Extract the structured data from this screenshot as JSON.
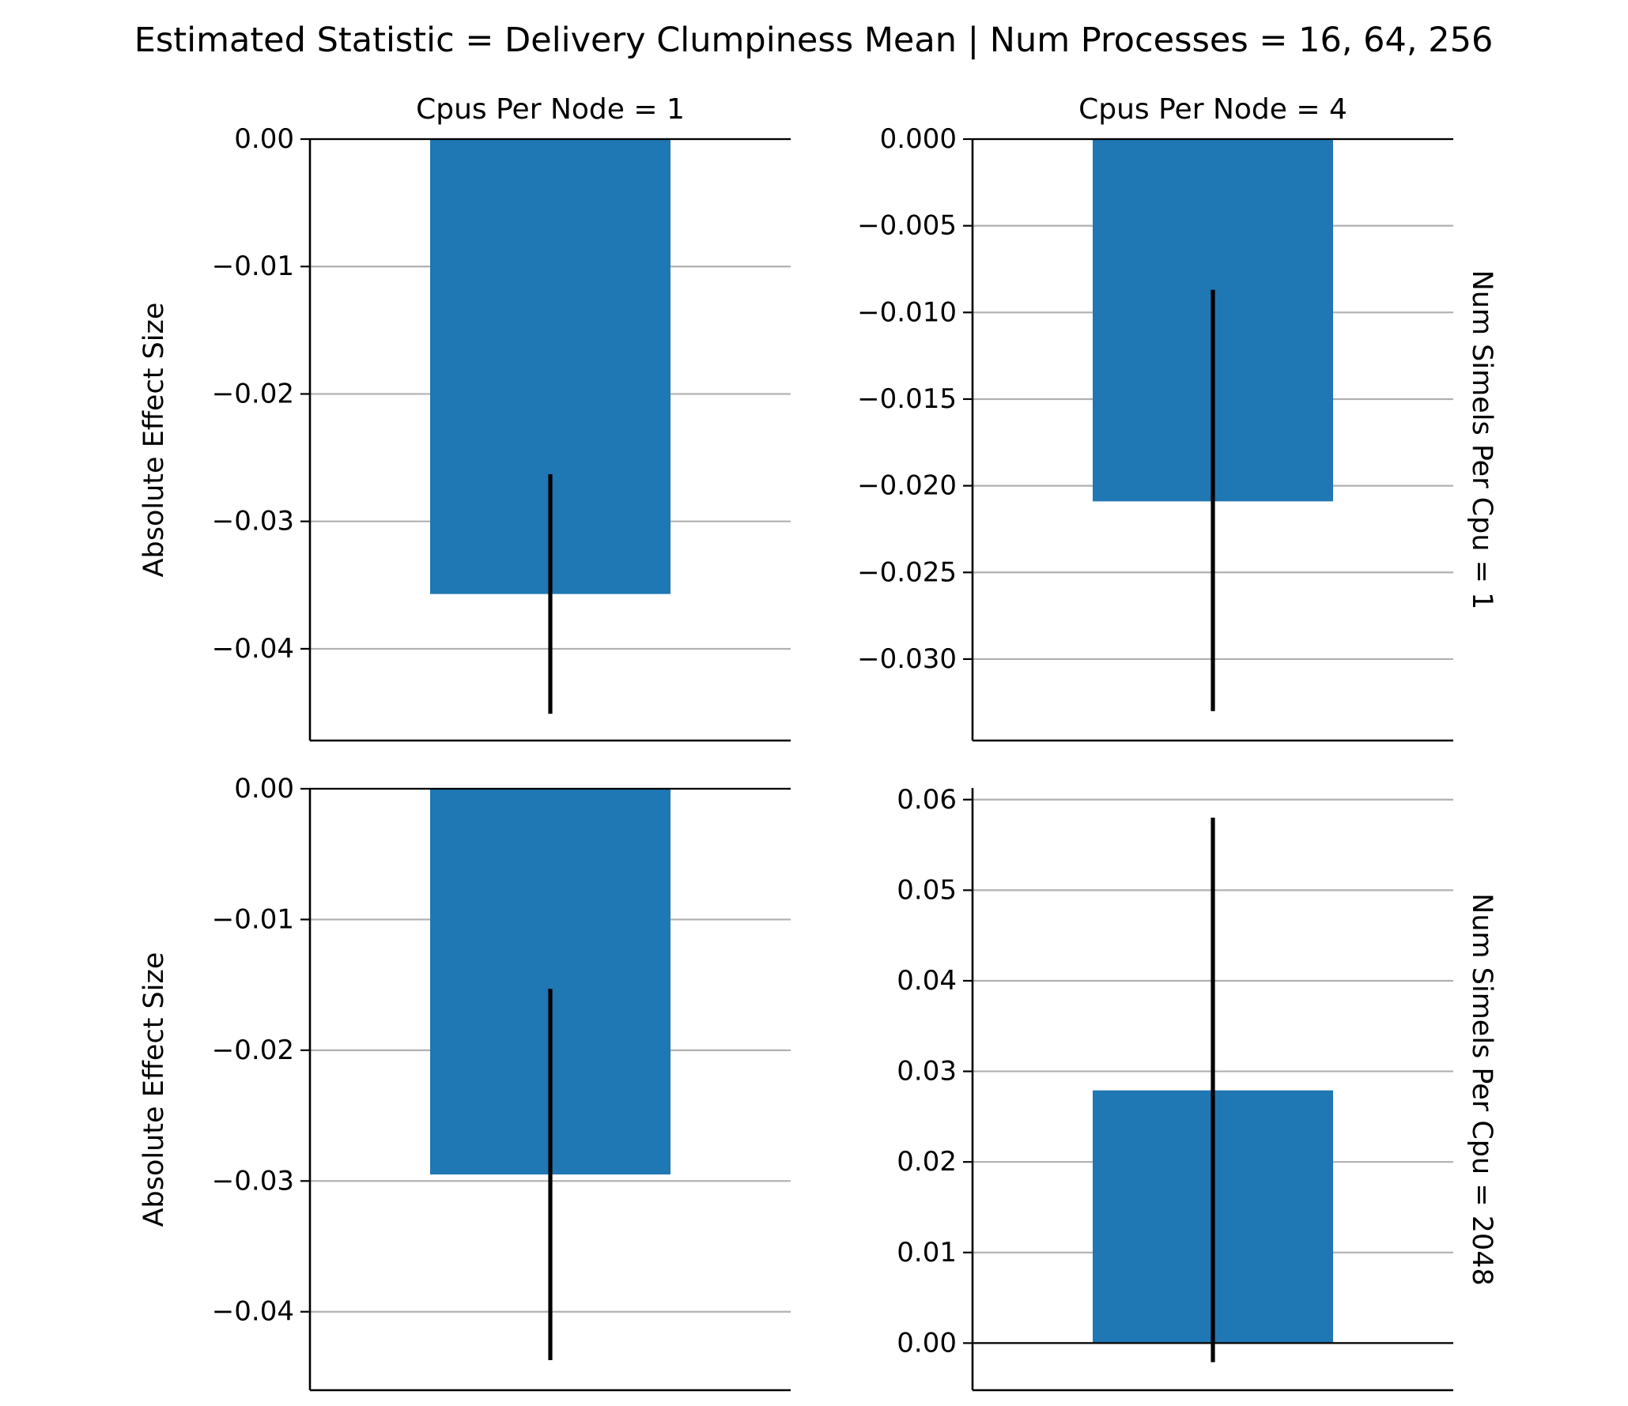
{
  "figure": {
    "suptitle": "Estimated Statistic = Delivery Clumpiness Mean | Num Processes = 16, 64, 256",
    "ylabel": "Absolute Effect Size"
  },
  "colors": {
    "bar": "#1f77b4",
    "errorbar": "#000000",
    "grid": "#b0b0b0",
    "axis": "#000000"
  },
  "chart_data": [
    {
      "type": "bar",
      "col_title": "Cpus Per Node = 1",
      "row_title": "",
      "ylabel": "Absolute Effect Size",
      "categories": [
        ""
      ],
      "values": [
        -0.0357
      ],
      "error_low": [
        -0.0451
      ],
      "error_high": [
        -0.0263
      ],
      "ylim": [
        -0.0472,
        0.0
      ],
      "yticks": [
        0.0,
        -0.01,
        -0.02,
        -0.03,
        -0.04
      ],
      "ytick_labels": [
        "0.00",
        "−0.01",
        "−0.02",
        "−0.03",
        "−0.04"
      ],
      "grid": "y"
    },
    {
      "type": "bar",
      "col_title": "Cpus Per Node = 4",
      "row_title": "Num Simels Per Cpu = 1",
      "ylabel": "",
      "categories": [
        ""
      ],
      "values": [
        -0.0209
      ],
      "error_low": [
        -0.033
      ],
      "error_high": [
        -0.0087
      ],
      "ylim": [
        -0.0347,
        0.0
      ],
      "yticks": [
        0.0,
        -0.005,
        -0.01,
        -0.015,
        -0.02,
        -0.025,
        -0.03
      ],
      "ytick_labels": [
        "0.000",
        "−0.005",
        "−0.010",
        "−0.015",
        "−0.020",
        "−0.025",
        "−0.030"
      ],
      "grid": "y"
    },
    {
      "type": "bar",
      "col_title": "",
      "row_title": "",
      "ylabel": "Absolute Effect Size",
      "categories": [
        ""
      ],
      "values": [
        -0.0295
      ],
      "error_low": [
        -0.0437
      ],
      "error_high": [
        -0.0153
      ],
      "ylim": [
        -0.046,
        0.0
      ],
      "yticks": [
        0.0,
        -0.01,
        -0.02,
        -0.03,
        -0.04
      ],
      "ytick_labels": [
        "0.00",
        "−0.01",
        "−0.02",
        "−0.03",
        "−0.04"
      ],
      "grid": "y"
    },
    {
      "type": "bar",
      "col_title": "",
      "row_title": "Num Simels Per Cpu = 2048",
      "ylabel": "",
      "categories": [
        ""
      ],
      "values": [
        0.0279
      ],
      "error_low": [
        -0.0021
      ],
      "error_high": [
        0.058
      ],
      "ylim": [
        -0.0052,
        0.0612
      ],
      "yticks": [
        0.0,
        0.01,
        0.02,
        0.03,
        0.04,
        0.05,
        0.06
      ],
      "ytick_labels": [
        "0.00",
        "0.01",
        "0.02",
        "0.03",
        "0.04",
        "0.05",
        "0.06"
      ],
      "grid": "y"
    }
  ]
}
